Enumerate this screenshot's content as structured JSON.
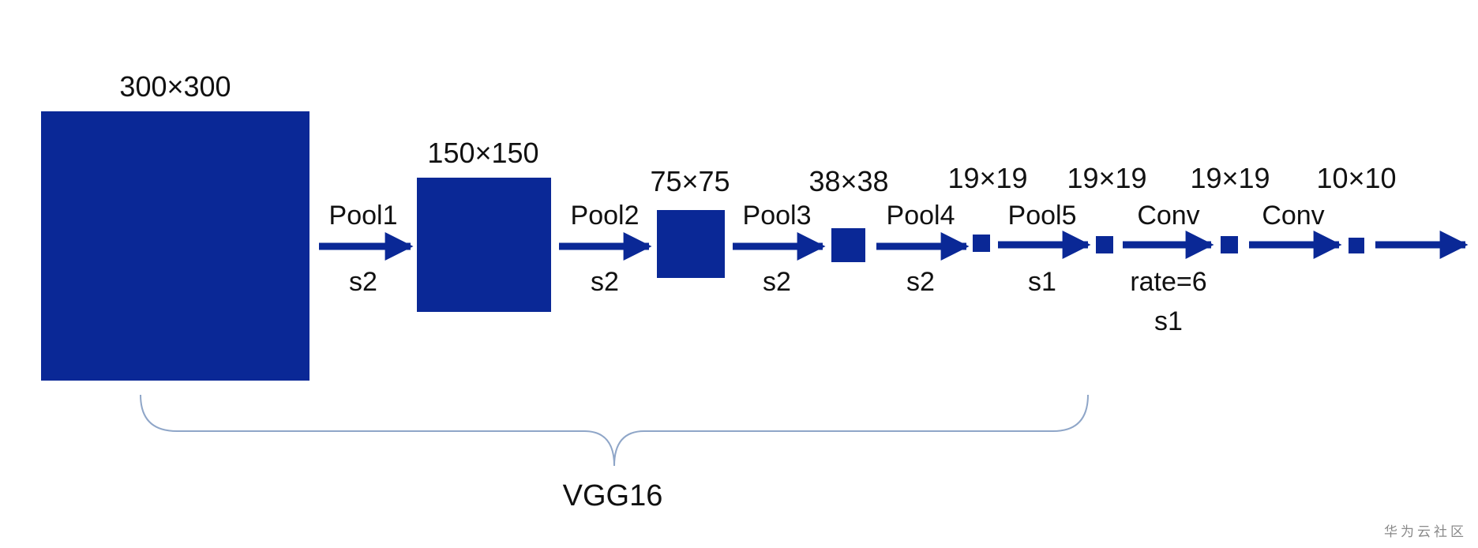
{
  "colors": {
    "block": "#0a2896",
    "arrow": "#0a2896",
    "brace": "#8fa6c8"
  },
  "blocks": [
    {
      "name": "feature-map-300",
      "size_label": "300×300"
    },
    {
      "name": "feature-map-150",
      "size_label": "150×150"
    },
    {
      "name": "feature-map-75",
      "size_label": "75×75"
    },
    {
      "name": "feature-map-38",
      "size_label": "38×38"
    },
    {
      "name": "feature-map-19a",
      "size_label": "19×19"
    },
    {
      "name": "feature-map-19b",
      "size_label": "19×19"
    },
    {
      "name": "feature-map-19c",
      "size_label": "19×19"
    },
    {
      "name": "feature-map-10",
      "size_label": "10×10"
    }
  ],
  "ops": [
    {
      "name": "pool1",
      "label": "Pool1",
      "lines": [
        "s2"
      ]
    },
    {
      "name": "pool2",
      "label": "Pool2",
      "lines": [
        "s2"
      ]
    },
    {
      "name": "pool3",
      "label": "Pool3",
      "lines": [
        "s2"
      ]
    },
    {
      "name": "pool4",
      "label": "Pool4",
      "lines": [
        "s2"
      ]
    },
    {
      "name": "pool5",
      "label": "Pool5",
      "lines": [
        "s1"
      ]
    },
    {
      "name": "conv6",
      "label": "Conv",
      "lines": [
        "rate=6",
        "s1"
      ]
    },
    {
      "name": "conv7",
      "label": "Conv",
      "lines": []
    },
    {
      "name": "output",
      "label": "",
      "lines": []
    }
  ],
  "brace_label": "VGG16",
  "watermark": "华为云社区"
}
